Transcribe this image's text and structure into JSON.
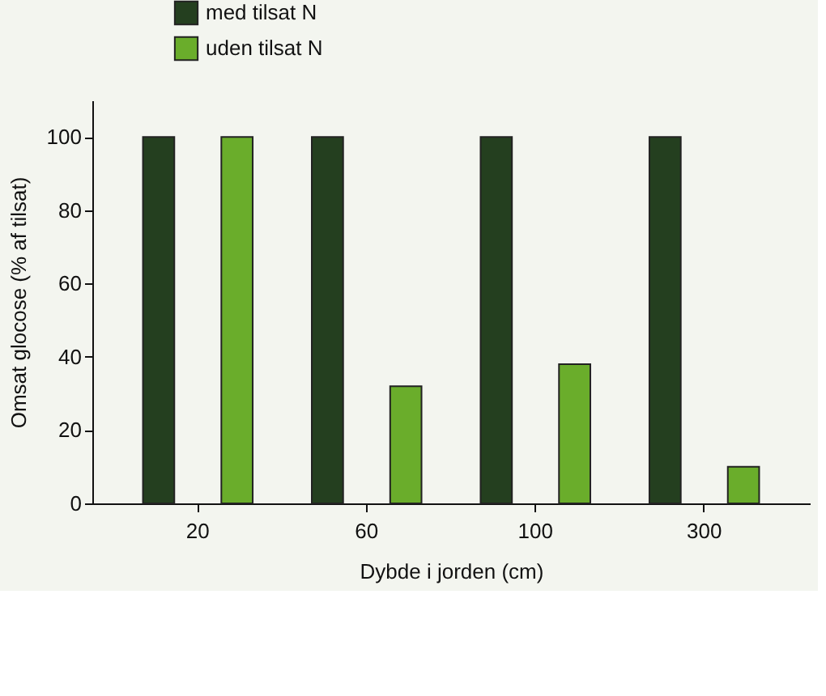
{
  "chart_data": {
    "type": "bar",
    "xlabel": "Dybde i jorden (cm)",
    "ylabel": "Omsat glocose (% af tilsat)",
    "categories": [
      "20",
      "60",
      "100",
      "300"
    ],
    "series": [
      {
        "name": "med tilsat N",
        "color": "#243f1f",
        "values": [
          100,
          100,
          100,
          100
        ]
      },
      {
        "name": "uden tilsat N",
        "color": "#6aad2b",
        "values": [
          100,
          32,
          38,
          10
        ]
      }
    ],
    "ylim": [
      0,
      110
    ],
    "yticks": [
      0,
      20,
      40,
      60,
      80,
      100
    ],
    "grid": false,
    "legend": "top left"
  }
}
